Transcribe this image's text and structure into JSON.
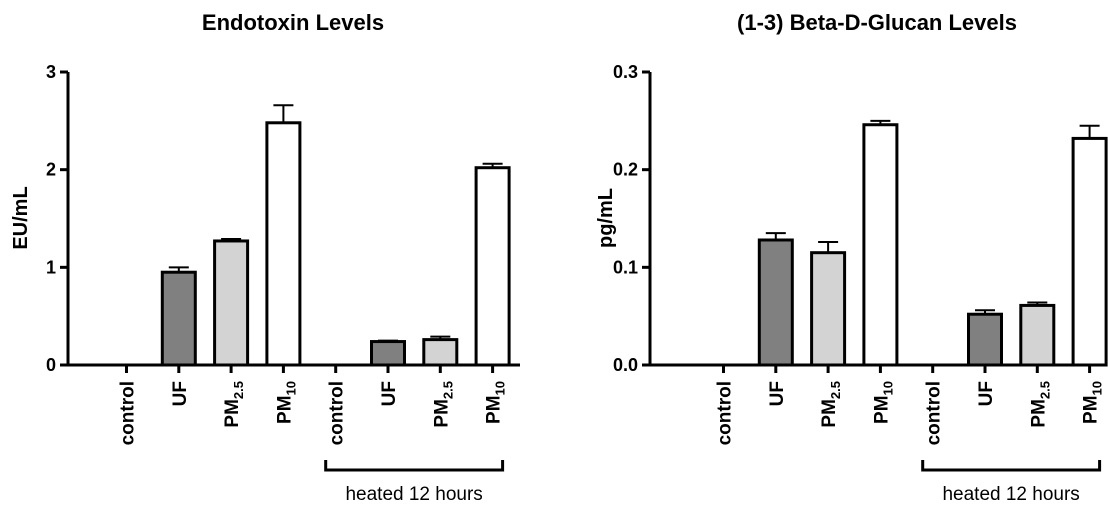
{
  "chart_data": [
    {
      "type": "bar",
      "title": "Endotoxin Levels",
      "ylabel": "EU/mL",
      "xlabel": "",
      "ylim": [
        0,
        3
      ],
      "yticks": [
        "0",
        "1",
        "2",
        "3"
      ],
      "categories": [
        {
          "main": "control",
          "sub": ""
        },
        {
          "main": "UF",
          "sub": ""
        },
        {
          "main": "PM",
          "sub": "2.5"
        },
        {
          "main": "PM",
          "sub": "10"
        },
        {
          "main": "control",
          "sub": ""
        },
        {
          "main": "UF",
          "sub": ""
        },
        {
          "main": "PM",
          "sub": "2.5"
        },
        {
          "main": "PM",
          "sub": "10"
        }
      ],
      "values": [
        0,
        0.95,
        1.27,
        2.48,
        0,
        0.24,
        0.26,
        2.02
      ],
      "errors": [
        0,
        0.05,
        0.02,
        0.18,
        0,
        0.01,
        0.03,
        0.04
      ],
      "bar_colors": [
        "#ffffff",
        "#808080",
        "#d3d3d3",
        "#ffffff",
        "#ffffff",
        "#808080",
        "#d3d3d3",
        "#ffffff"
      ],
      "bracket_label": "heated 12 hours"
    },
    {
      "type": "bar",
      "title": "(1-3) Beta-D-Glucan Levels",
      "ylabel": "pg/mL",
      "xlabel": "",
      "ylim": [
        0,
        0.3
      ],
      "yticks": [
        "0.0",
        "0.1",
        "0.2",
        "0.3"
      ],
      "categories": [
        {
          "main": "control",
          "sub": ""
        },
        {
          "main": "UF",
          "sub": ""
        },
        {
          "main": "PM",
          "sub": "2.5"
        },
        {
          "main": "PM",
          "sub": "10"
        },
        {
          "main": "control",
          "sub": ""
        },
        {
          "main": "UF",
          "sub": ""
        },
        {
          "main": "PM",
          "sub": "2.5"
        },
        {
          "main": "PM",
          "sub": "10"
        }
      ],
      "values": [
        0,
        0.128,
        0.115,
        0.246,
        0,
        0.052,
        0.061,
        0.232
      ],
      "errors": [
        0,
        0.007,
        0.011,
        0.004,
        0,
        0.004,
        0.003,
        0.013
      ],
      "bar_colors": [
        "#ffffff",
        "#808080",
        "#d3d3d3",
        "#ffffff",
        "#ffffff",
        "#808080",
        "#d3d3d3",
        "#ffffff"
      ],
      "bracket_label": "heated 12 hours"
    }
  ]
}
